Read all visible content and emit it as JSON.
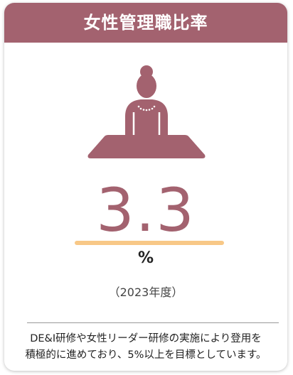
{
  "header": {
    "title": "女性管理職比率"
  },
  "metric": {
    "value": 3.3,
    "unit": "%",
    "period": "（2023年度）"
  },
  "description": [
    "DE&I研修や女性リーダー研修の実施により登用を",
    "積極的に進めており、5%以上を目標としています。"
  ]
}
